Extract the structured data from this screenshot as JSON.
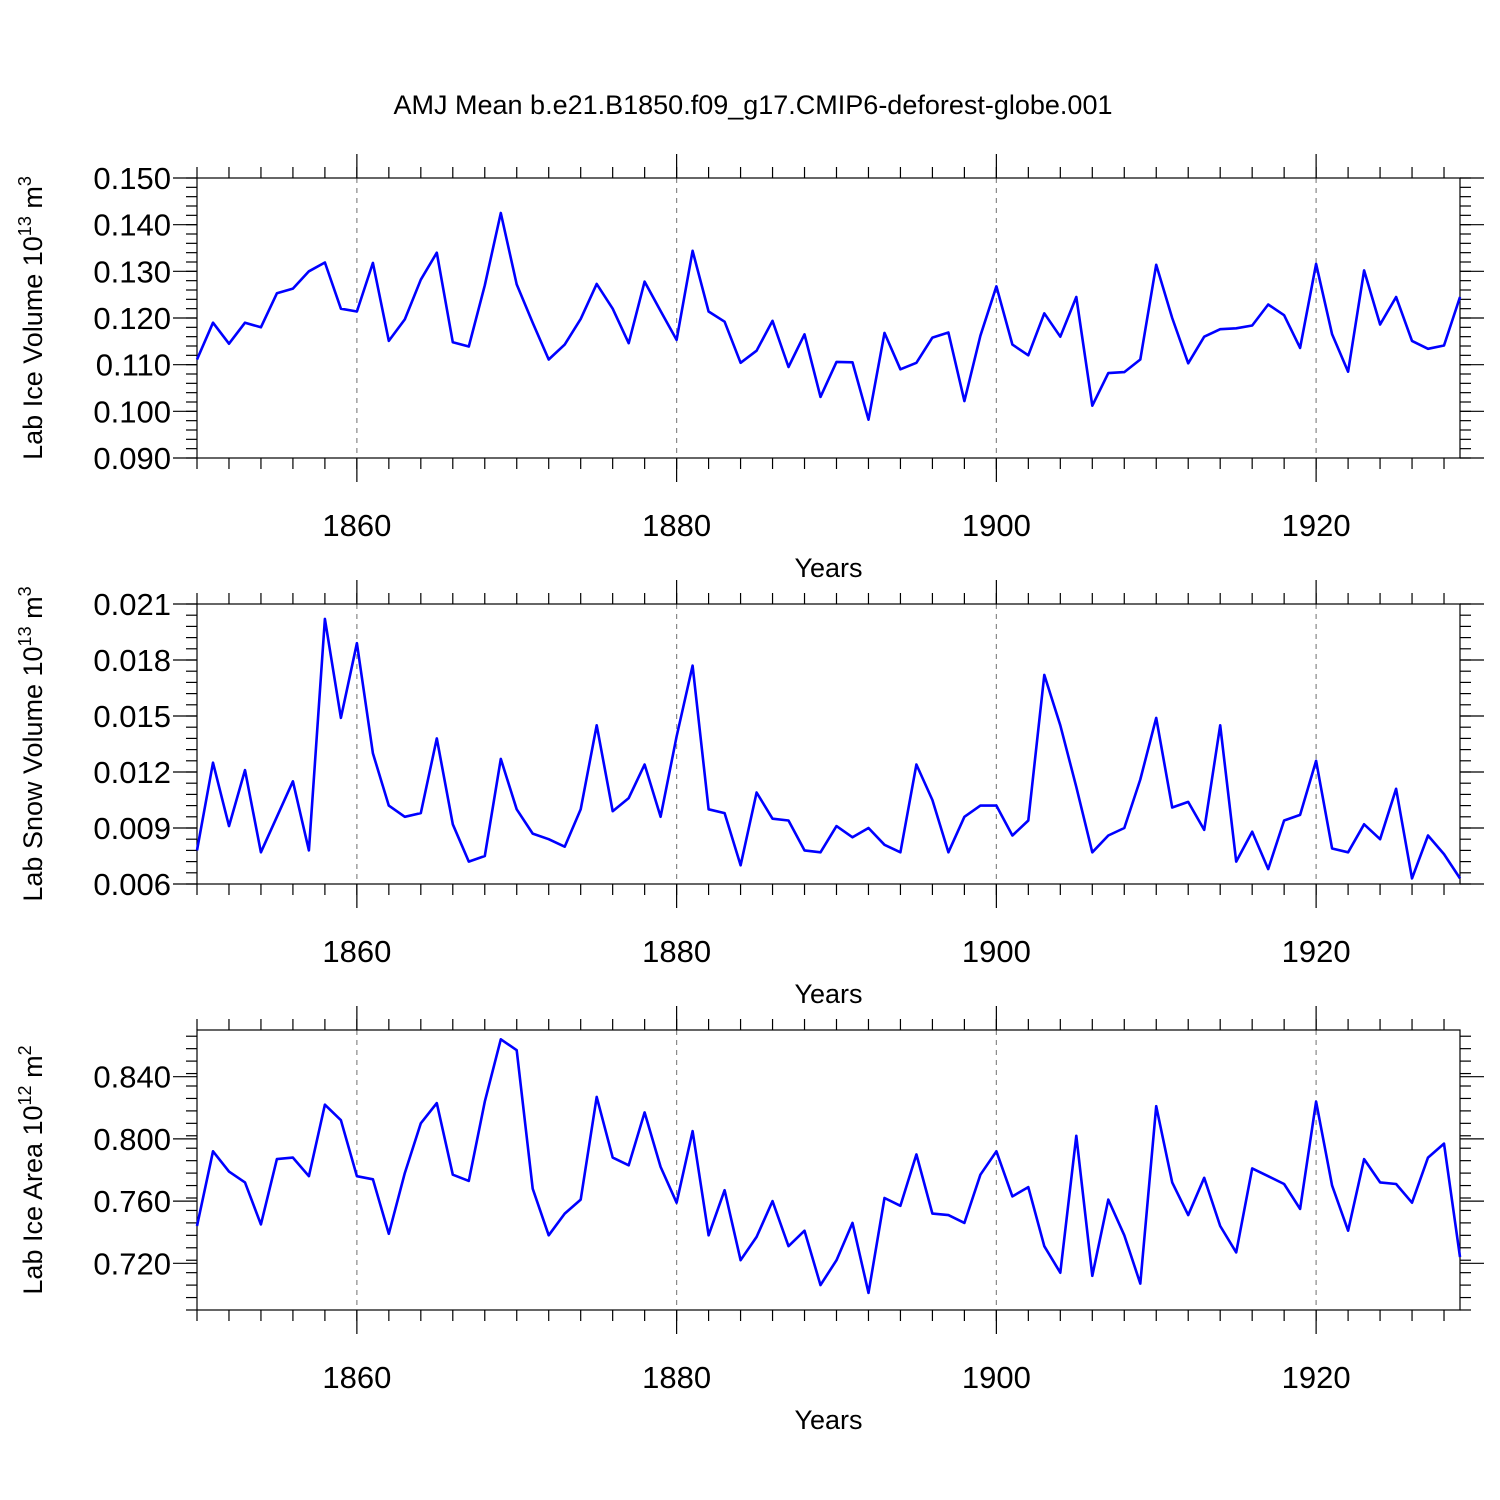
{
  "title": "AMJ Mean b.e21.B1850.f09_g17.CMIP6-deforest-globe.001",
  "colors": {
    "line": "#0000ff",
    "axis": "#000000",
    "grid": "#888888"
  },
  "chart_data": [
    {
      "type": "line",
      "ylabel": "Lab Ice Volume 10",
      "ylabel_exp": "13",
      "ylabel_unit": " m",
      "ylabel_unit_exp": "3",
      "xlabel": "Years",
      "xlim": [
        1850,
        1929
      ],
      "ylim": [
        0.09,
        0.15
      ],
      "yticks": [
        0.09,
        0.1,
        0.11,
        0.12,
        0.13,
        0.14,
        0.15
      ],
      "ytick_labels": [
        "0.090",
        "0.100",
        "0.110",
        "0.120",
        "0.130",
        "0.140",
        "0.150"
      ],
      "xticks": [
        1860,
        1880,
        1900,
        1920
      ],
      "xtick_labels": [
        "1860",
        "1880",
        "1900",
        "1920"
      ],
      "x_start": 1850,
      "values": [
        0.1111,
        0.119,
        0.1145,
        0.119,
        0.118,
        0.1253,
        0.1263,
        0.13,
        0.1319,
        0.122,
        0.1214,
        0.1318,
        0.1151,
        0.1197,
        0.1282,
        0.134,
        0.1148,
        0.1139,
        0.127,
        0.1425,
        0.1272,
        0.119,
        0.1111,
        0.1143,
        0.1198,
        0.1273,
        0.122,
        0.1146,
        0.1278,
        0.1215,
        0.1153,
        0.1344,
        0.1214,
        0.1192,
        0.1104,
        0.113,
        0.1194,
        0.1095,
        0.1165,
        0.1031,
        0.1106,
        0.1105,
        0.0982,
        0.1168,
        0.109,
        0.1104,
        0.1158,
        0.1169,
        0.1022,
        0.1162,
        0.1268,
        0.1143,
        0.112,
        0.121,
        0.116,
        0.1245,
        0.1012,
        0.1082,
        0.1084,
        0.1111,
        0.1314,
        0.12,
        0.1103,
        0.116,
        0.1176,
        0.1178,
        0.1184,
        0.1229,
        0.1206,
        0.1136,
        0.1316,
        0.1165,
        0.1085,
        0.1302,
        0.1186,
        0.1245,
        0.1151,
        0.1134,
        0.1141,
        0.1245
      ]
    },
    {
      "type": "line",
      "ylabel": "Lab Snow Volume 10",
      "ylabel_exp": "13",
      "ylabel_unit": " m",
      "ylabel_unit_exp": "3",
      "xlabel": "Years",
      "xlim": [
        1850,
        1929
      ],
      "ylim": [
        0.006,
        0.021
      ],
      "yticks": [
        0.006,
        0.009,
        0.012,
        0.015,
        0.018,
        0.021
      ],
      "ytick_labels": [
        "0.006",
        "0.009",
        "0.012",
        "0.015",
        "0.018",
        "0.021"
      ],
      "xticks": [
        1860,
        1880,
        1900,
        1920
      ],
      "xtick_labels": [
        "1860",
        "1880",
        "1900",
        "1920"
      ],
      "x_start": 1850,
      "values": [
        0.0078,
        0.0125,
        0.0091,
        0.0121,
        0.0077,
        0.0096,
        0.0115,
        0.0078,
        0.0202,
        0.0149,
        0.0189,
        0.013,
        0.0102,
        0.0096,
        0.0098,
        0.0138,
        0.0092,
        0.0072,
        0.0075,
        0.0127,
        0.01,
        0.0087,
        0.0084,
        0.008,
        0.01,
        0.0145,
        0.0099,
        0.0106,
        0.0124,
        0.0096,
        0.0139,
        0.0177,
        0.01,
        0.0098,
        0.007,
        0.0109,
        0.0095,
        0.0094,
        0.0078,
        0.0077,
        0.0091,
        0.0085,
        0.009,
        0.0081,
        0.0077,
        0.0124,
        0.0105,
        0.0077,
        0.0096,
        0.0102,
        0.0102,
        0.0086,
        0.0094,
        0.0172,
        0.0145,
        0.0112,
        0.0077,
        0.0086,
        0.009,
        0.0116,
        0.0149,
        0.0101,
        0.0104,
        0.0089,
        0.0145,
        0.0072,
        0.0088,
        0.0068,
        0.0094,
        0.0097,
        0.0126,
        0.0079,
        0.0077,
        0.0092,
        0.0084,
        0.0111,
        0.0063,
        0.0086,
        0.0076,
        0.0063
      ]
    },
    {
      "type": "line",
      "ylabel": "Lab Ice Area 10",
      "ylabel_exp": "12",
      "ylabel_unit": " m",
      "ylabel_unit_exp": "2",
      "xlabel": "Years",
      "xlim": [
        1850,
        1929
      ],
      "ylim": [
        0.69,
        0.87
      ],
      "yticks": [
        0.72,
        0.76,
        0.8,
        0.84
      ],
      "ytick_labels": [
        "0.720",
        "0.760",
        "0.800",
        "0.840"
      ],
      "xticks": [
        1860,
        1880,
        1900,
        1920
      ],
      "xtick_labels": [
        "1860",
        "1880",
        "1900",
        "1920"
      ],
      "x_start": 1850,
      "values": [
        0.744,
        0.792,
        0.779,
        0.772,
        0.745,
        0.787,
        0.788,
        0.776,
        0.822,
        0.812,
        0.776,
        0.774,
        0.739,
        0.778,
        0.81,
        0.823,
        0.777,
        0.773,
        0.824,
        0.864,
        0.857,
        0.768,
        0.738,
        0.752,
        0.761,
        0.827,
        0.788,
        0.783,
        0.817,
        0.782,
        0.759,
        0.805,
        0.738,
        0.767,
        0.722,
        0.737,
        0.76,
        0.731,
        0.741,
        0.706,
        0.722,
        0.746,
        0.701,
        0.762,
        0.757,
        0.79,
        0.752,
        0.751,
        0.746,
        0.777,
        0.792,
        0.763,
        0.769,
        0.731,
        0.714,
        0.802,
        0.712,
        0.761,
        0.738,
        0.707,
        0.821,
        0.772,
        0.751,
        0.775,
        0.744,
        0.727,
        0.781,
        0.776,
        0.771,
        0.755,
        0.824,
        0.77,
        0.741,
        0.787,
        0.772,
        0.771,
        0.759,
        0.788,
        0.797,
        0.724
      ]
    }
  ]
}
